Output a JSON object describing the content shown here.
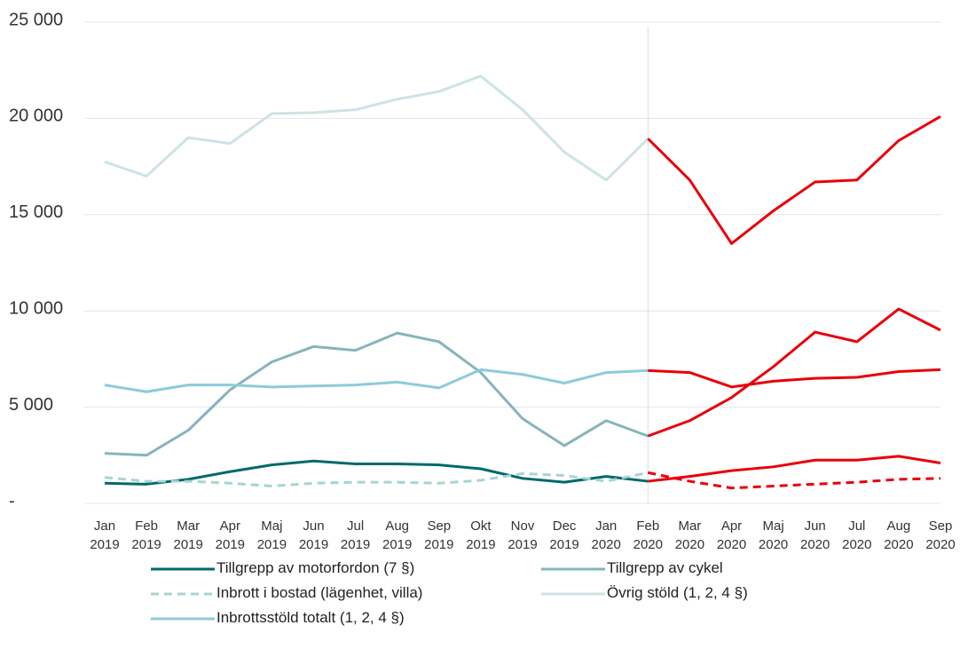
{
  "chart_data": {
    "type": "line",
    "categories": [
      "Jan 2019",
      "Feb 2019",
      "Mar 2019",
      "Apr 2019",
      "Maj 2019",
      "Jun 2019",
      "Jul 2019",
      "Aug 2019",
      "Sep 2019",
      "Okt 2019",
      "Nov 2019",
      "Dec 2019",
      "Jan 2020",
      "Feb 2020",
      "Mar 2020",
      "Apr 2020",
      "Maj 2020",
      "Jun 2020",
      "Jul 2020",
      "Aug 2020",
      "Sep 2020"
    ],
    "series": [
      {
        "name": "Tillgrepp av motorfordon (7 §)",
        "color": "#00696b",
        "dashed": false,
        "values": [
          1050,
          1000,
          1250,
          1650,
          2000,
          2200,
          2050,
          2050,
          2000,
          1800,
          1300,
          1100,
          1400,
          1150,
          1400,
          1700,
          1900,
          2250,
          2250,
          2450,
          2100
        ]
      },
      {
        "name": "Tillgrepp av cykel",
        "color": "#86b5bb",
        "dashed": false,
        "values": [
          2600,
          2500,
          3800,
          5900,
          7350,
          8150,
          7950,
          8850,
          8400,
          6800,
          4400,
          3000,
          4300,
          3500,
          4300,
          5500,
          7100,
          8900,
          8400,
          10100,
          9000
        ]
      },
      {
        "name": "Inbrott i bostad (lägenhet, villa)",
        "color": "#a7d4d3",
        "dashed": true,
        "values": [
          1350,
          1150,
          1150,
          1050,
          900,
          1050,
          1100,
          1100,
          1050,
          1200,
          1550,
          1450,
          1150,
          1600,
          1150,
          800,
          900,
          1000,
          1100,
          1250,
          1300
        ]
      },
      {
        "name": "Övrig stöld  (1, 2, 4 §)",
        "color": "#cde3e5",
        "dashed": false,
        "values": [
          17750,
          17000,
          19000,
          18700,
          20250,
          20300,
          20450,
          21000,
          21400,
          22200,
          20450,
          18250,
          16800,
          18950,
          16800,
          13500,
          15200,
          16700,
          16800,
          18850,
          20100
        ]
      },
      {
        "name": "Inbrottsstöld totalt (1, 2, 4 §)",
        "color": "#8ccbd9",
        "dashed": false,
        "values": [
          6150,
          5800,
          6150,
          6150,
          6050,
          6100,
          6150,
          6300,
          6000,
          6950,
          6700,
          6250,
          6800,
          6900,
          6800,
          6050,
          6350,
          6500,
          6550,
          6850,
          6950
        ]
      }
    ],
    "highlight_from_index": 13,
    "highlight_color": "#e8000b",
    "ylim": [
      0,
      25000
    ],
    "yticks": [
      {
        "value": 0,
        "label": "-"
      },
      {
        "value": 5000,
        "label": "5 000"
      },
      {
        "value": 10000,
        "label": "10 000"
      },
      {
        "value": 15000,
        "label": "15 000"
      },
      {
        "value": 20000,
        "label": "20 000"
      },
      {
        "value": 25000,
        "label": "25 000"
      }
    ],
    "grid": true
  }
}
